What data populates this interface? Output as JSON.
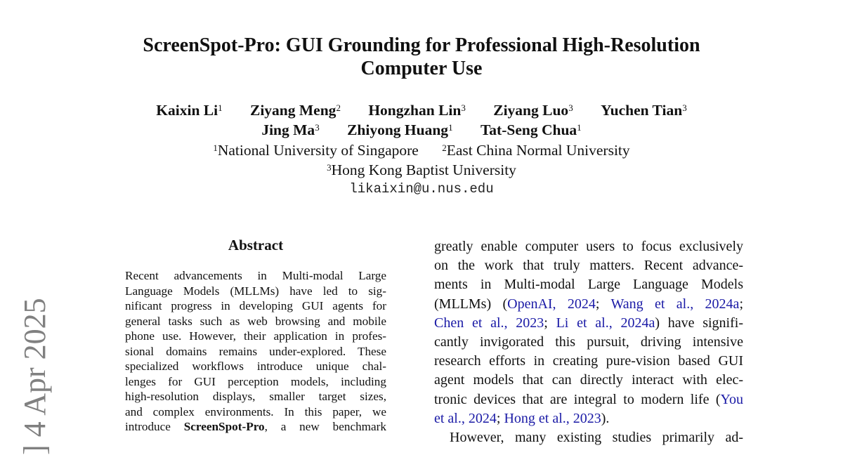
{
  "title": [
    "ScreenSpot-Pro: GUI Grounding for Professional High-Resolution",
    "Computer Use"
  ],
  "authors": [
    [
      {
        "name": "Kaixin Li",
        "aff": "1"
      },
      {
        "name": "Ziyang Meng",
        "aff": "2"
      },
      {
        "name": "Hongzhan Lin",
        "aff": "3"
      },
      {
        "name": "Ziyang Luo",
        "aff": "3"
      },
      {
        "name": "Yuchen Tian",
        "aff": "3"
      }
    ],
    [
      {
        "name": "Jing Ma",
        "aff": "3"
      },
      {
        "name": "Zhiyong Huang",
        "aff": "1"
      },
      {
        "name": "Tat-Seng Chua",
        "aff": "1"
      }
    ]
  ],
  "affiliations": [
    {
      "num": "1",
      "name": "National University of Singapore"
    },
    {
      "num": "2",
      "name": "East China Normal University"
    },
    {
      "num": "3",
      "name": "Hong Kong Baptist University"
    }
  ],
  "email": "likaixin@u.nus.edu",
  "arxiv_stamp": "] 4 Apr 2025",
  "abstract": {
    "heading": "Abstract",
    "lines": [
      "Recent advancements in Multi-modal Large",
      "Language Models (MLLMs) have led to sig-",
      "nificant progress in developing GUI agents for",
      "general tasks such as web browsing and mobile",
      "phone use. However, their application in profes-",
      "sional domains remains under-explored. These",
      "specialized workflows introduce unique chal-",
      "lenges for GUI perception models, including",
      "high-resolution displays, smaller target sizes,",
      "and complex environments. In this paper, we"
    ],
    "last_line": {
      "pre": "introduce ",
      "bold": "ScreenSpot-Pro",
      "post": ", a new benchmark"
    }
  },
  "intro": {
    "lines": [
      "greatly enable computer users to focus exclusively",
      "on the work that truly matters. Recent advance-",
      "ments in Multi-modal Large Language Models"
    ],
    "line4": {
      "pre": "(MLLMs) (",
      "c1": "OpenAI, 2024",
      "s1": "; ",
      "c2": "Wang et al., 2024a",
      "s2": ";"
    },
    "line5": {
      "c1": "Chen et al., 2023",
      "s1": "; ",
      "c2": "Li et al., 2024a",
      "post": ") have signifi-"
    },
    "lines2": [
      "cantly invigorated this pursuit, driving intensive",
      "research efforts in creating pure-vision based GUI",
      "agent models that can directly interact with elec-"
    ],
    "line9": {
      "pre": "tronic devices that are integral to modern life (",
      "c1": "You"
    },
    "line10": {
      "c1": "et al., 2024",
      "s1": "; ",
      "c2": "Hong et al., 2023",
      "post": ")."
    },
    "para2": "However, many existing studies primarily ad-"
  },
  "colors": {
    "citation": "#1a1aa6",
    "stamp": "#808080"
  }
}
